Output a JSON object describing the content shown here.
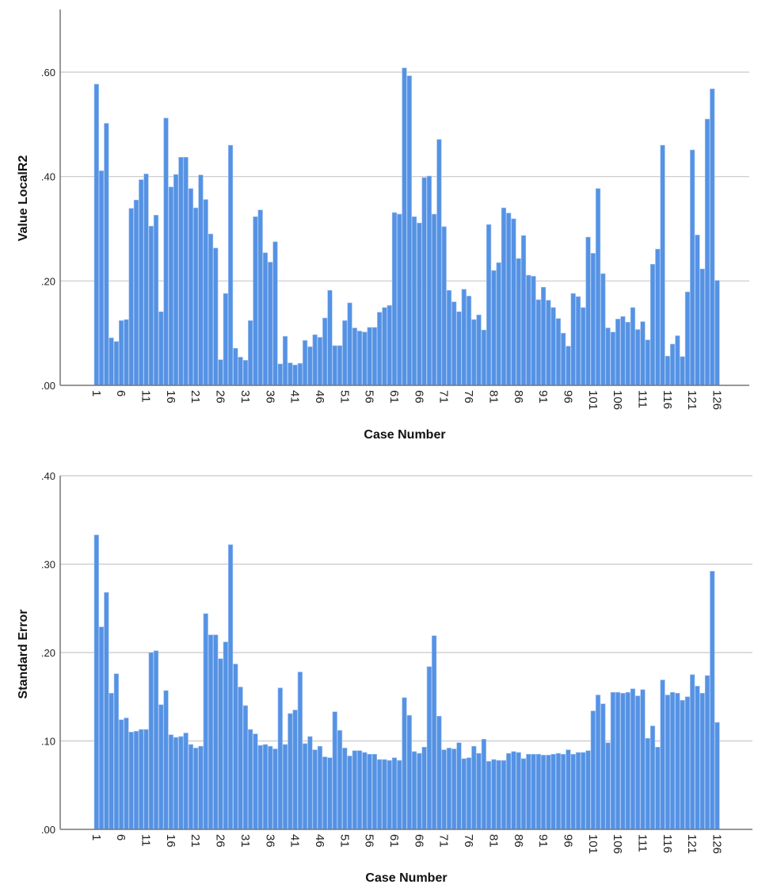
{
  "chart_data": [
    {
      "type": "bar",
      "title": "",
      "xlabel": "Case Number",
      "ylabel": "Value LocalR2",
      "ylim": [
        0,
        0.72
      ],
      "yticks": [
        ".00",
        ".20",
        ".40",
        ".60"
      ],
      "ytick_values": [
        0,
        0.2,
        0.4,
        0.6
      ],
      "grid": true,
      "bar_color": "#5592e4",
      "xtick_labels": [
        "1",
        "6",
        "11",
        "16",
        "21",
        "26",
        "31",
        "36",
        "41",
        "46",
        "51",
        "56",
        "61",
        "66",
        "71",
        "76",
        "81",
        "86",
        "91",
        "96",
        "101",
        "106",
        "111",
        "116",
        "121",
        "126"
      ],
      "values": [
        0.577,
        0.411,
        0.502,
        0.091,
        0.084,
        0.124,
        0.126,
        0.339,
        0.355,
        0.394,
        0.405,
        0.305,
        0.326,
        0.141,
        0.512,
        0.38,
        0.404,
        0.437,
        0.437,
        0.377,
        0.34,
        0.403,
        0.356,
        0.29,
        0.263,
        0.049,
        0.176,
        0.46,
        0.071,
        0.054,
        0.048,
        0.124,
        0.323,
        0.336,
        0.254,
        0.236,
        0.275,
        0.041,
        0.094,
        0.043,
        0.039,
        0.042,
        0.086,
        0.074,
        0.097,
        0.092,
        0.129,
        0.182,
        0.076,
        0.076,
        0.124,
        0.158,
        0.11,
        0.104,
        0.102,
        0.111,
        0.111,
        0.14,
        0.149,
        0.153,
        0.331,
        0.328,
        0.608,
        0.593,
        0.323,
        0.311,
        0.398,
        0.401,
        0.328,
        0.471,
        0.304,
        0.182,
        0.16,
        0.141,
        0.184,
        0.171,
        0.126,
        0.135,
        0.106,
        0.308,
        0.22,
        0.235,
        0.34,
        0.33,
        0.319,
        0.243,
        0.287,
        0.211,
        0.209,
        0.164,
        0.188,
        0.163,
        0.149,
        0.128,
        0.1,
        0.075,
        0.176,
        0.17,
        0.149,
        0.284,
        0.253,
        0.377,
        0.214,
        0.11,
        0.102,
        0.127,
        0.132,
        0.121,
        0.149,
        0.107,
        0.122,
        0.087,
        0.232,
        0.261,
        0.46,
        0.056,
        0.079,
        0.095,
        0.055,
        0.179,
        0.451,
        0.288,
        0.223,
        0.51,
        0.568,
        0.201
      ]
    },
    {
      "type": "bar",
      "title": "",
      "xlabel": "Case Number",
      "ylabel": "Standard Error",
      "ylim": [
        0,
        0.4
      ],
      "yticks": [
        ".00",
        ".10",
        ".20",
        ".30",
        ".40"
      ],
      "ytick_values": [
        0,
        0.1,
        0.2,
        0.3,
        0.4
      ],
      "grid": true,
      "bar_color": "#5592e4",
      "xtick_labels": [
        "1",
        "6",
        "11",
        "16",
        "21",
        "26",
        "31",
        "36",
        "41",
        "46",
        "51",
        "56",
        "61",
        "66",
        "71",
        "76",
        "81",
        "86",
        "91",
        "96",
        "101",
        "106",
        "111",
        "116",
        "121",
        "126"
      ],
      "values": [
        0.333,
        0.229,
        0.268,
        0.154,
        0.176,
        0.124,
        0.126,
        0.11,
        0.111,
        0.113,
        0.113,
        0.2,
        0.202,
        0.141,
        0.157,
        0.107,
        0.104,
        0.105,
        0.109,
        0.096,
        0.092,
        0.094,
        0.244,
        0.22,
        0.22,
        0.193,
        0.212,
        0.322,
        0.187,
        0.161,
        0.14,
        0.113,
        0.108,
        0.095,
        0.096,
        0.094,
        0.091,
        0.16,
        0.096,
        0.131,
        0.135,
        0.178,
        0.097,
        0.105,
        0.09,
        0.094,
        0.082,
        0.081,
        0.133,
        0.112,
        0.092,
        0.083,
        0.089,
        0.089,
        0.087,
        0.085,
        0.085,
        0.079,
        0.079,
        0.078,
        0.081,
        0.078,
        0.149,
        0.129,
        0.088,
        0.086,
        0.093,
        0.184,
        0.219,
        0.128,
        0.09,
        0.092,
        0.091,
        0.098,
        0.08,
        0.081,
        0.094,
        0.086,
        0.102,
        0.077,
        0.079,
        0.078,
        0.078,
        0.086,
        0.088,
        0.087,
        0.08,
        0.085,
        0.085,
        0.085,
        0.084,
        0.084,
        0.085,
        0.086,
        0.085,
        0.09,
        0.085,
        0.087,
        0.087,
        0.089,
        0.134,
        0.152,
        0.142,
        0.098,
        0.155,
        0.155,
        0.154,
        0.155,
        0.159,
        0.151,
        0.158,
        0.103,
        0.117,
        0.093,
        0.169,
        0.152,
        0.155,
        0.154,
        0.146,
        0.15,
        0.175,
        0.162,
        0.154,
        0.174,
        0.292,
        0.121
      ]
    }
  ]
}
